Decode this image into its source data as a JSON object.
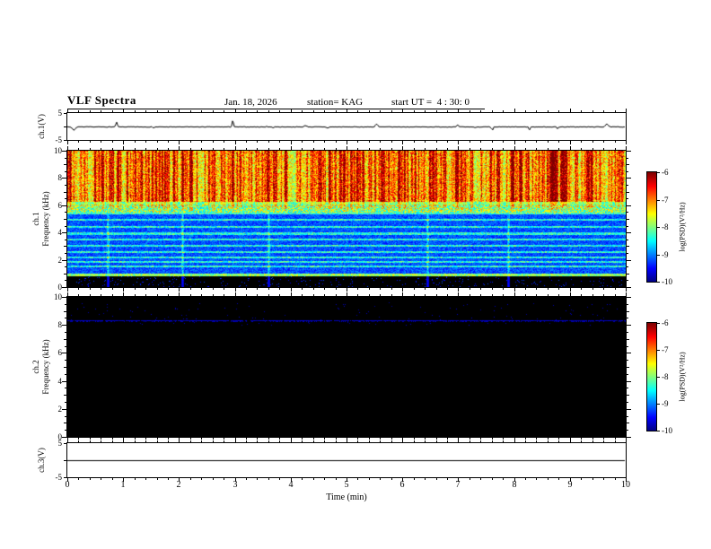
{
  "header": {
    "title": "VLF Spectra",
    "date": "Jan. 18, 2026",
    "station": "station= KAG",
    "start_ut": "start UT =  4 : 30: 0"
  },
  "axes": {
    "time_label": "Time (min)",
    "time_ticks": [
      "0",
      "1",
      "2",
      "3",
      "4",
      "5",
      "6",
      "7",
      "8",
      "9",
      "10"
    ],
    "ch1_wave": {
      "label": "ch.1(V)",
      "ticks": [
        "5",
        "-5"
      ]
    },
    "ch1_spec": {
      "label_channel": "ch.1",
      "label_freq": "Frequency (kHz)",
      "ticks": [
        "10",
        "8",
        "6",
        "4",
        "2",
        "0"
      ]
    },
    "ch2_spec": {
      "label_channel": "ch.2",
      "label_freq": "Frequency (kHz)",
      "ticks": [
        "10",
        "8",
        "6",
        "4",
        "2",
        "0"
      ]
    },
    "ch3_wave": {
      "label": "ch.3(V)",
      "ticks": [
        "5",
        "-5"
      ]
    },
    "colorbar": {
      "label": "log(PSD)(V²/Hz)",
      "ticks": [
        "-6",
        "-7",
        "-8",
        "-9",
        "-10"
      ]
    }
  },
  "chart_data": [
    {
      "name": "ch1-voltage",
      "type": "line",
      "ylabel": "ch.1(V)",
      "xlabel": "Time (min)",
      "xlim": [
        0,
        10
      ],
      "ylim": [
        -5,
        5
      ],
      "baseline": 0,
      "noise_amplitude_v": 0.12,
      "spike_count": 16,
      "spike_max_v": 2.2,
      "description": "Near-zero waveform trace with small impulsive spikes"
    },
    {
      "name": "ch1-spectrogram",
      "type": "heatmap",
      "xlabel": "Time (min)",
      "ylabel": "Frequency (kHz)",
      "xlim": [
        0,
        10
      ],
      "ylim": [
        0,
        10
      ],
      "colorbar_label": "log(PSD)(V²/Hz)",
      "colorbar_range": [
        -10,
        -6
      ],
      "bands": {
        "sferics_band_khz": [
          6.3,
          10
        ],
        "mid_band_khz": [
          5.35,
          6.3
        ],
        "blue_region_khz": [
          1.05,
          5.35
        ],
        "line_frequencies_khz": [
          4.95,
          4.45,
          3.95,
          3.5,
          3.05,
          2.6,
          2.2,
          1.85,
          1.55
        ],
        "bottom_band_khz": [
          0.85,
          1.05
        ],
        "black_below_khz": 0.85,
        "faint_vertical_lines_min": [
          0.72,
          2.05,
          3.6,
          6.45,
          7.9
        ]
      },
      "description": "Dense red/yellow sferic streaks 6-10 kHz over green background; discrete cyan horizontal lines below 5 kHz on blue background; bright band near 1 kHz; black below ~0.85 kHz"
    },
    {
      "name": "ch2-spectrogram",
      "type": "heatmap",
      "xlabel": "Time (min)",
      "ylabel": "Frequency (kHz)",
      "xlim": [
        0,
        10
      ],
      "ylim": [
        0,
        10
      ],
      "colorbar_label": "log(PSD)(V²/Hz)",
      "colorbar_range": [
        -10,
        -6
      ],
      "bands": {
        "carrier_line_khz": 8.35,
        "speck_band_khz": [
          8.0,
          9.6
        ]
      },
      "description": "Background below color-scale floor (black); single faint blue horizontal line near 8.3 kHz with sparse faint specks"
    },
    {
      "name": "ch3-voltage",
      "type": "line",
      "ylabel": "ch.3(V)",
      "xlabel": "Time (min)",
      "xlim": [
        0,
        10
      ],
      "ylim": [
        -5,
        5
      ],
      "baseline": 0,
      "noise_amplitude_v": 0,
      "spike_count": 0,
      "spike_max_v": 0,
      "description": "Flat trace at 0 V"
    }
  ]
}
